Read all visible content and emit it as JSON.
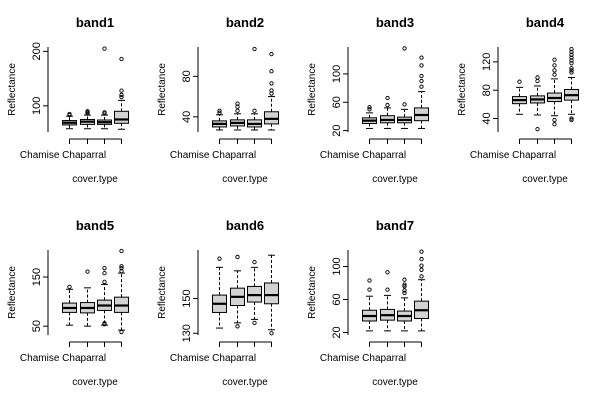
{
  "chart_data": [
    {
      "type": "box",
      "title": "band1",
      "ylabel": "Reflectance",
      "xlabel": "cover.type",
      "category_label_shown": "Chamise Chaparral",
      "ylim": [
        52,
        208
      ],
      "yticks": [
        100,
        200
      ],
      "boxes": [
        {
          "q1": 65,
          "median": 69,
          "q3": 73,
          "whisker_low": 58,
          "whisker_high": 81,
          "outliers": [
            83,
            85
          ]
        },
        {
          "q1": 66,
          "median": 71,
          "q3": 75,
          "whisker_low": 58,
          "whisker_high": 83,
          "outliers": [
            86,
            88,
            90
          ]
        },
        {
          "q1": 66,
          "median": 70,
          "q3": 74,
          "whisker_low": 58,
          "whisker_high": 83,
          "outliers": [
            86,
            88,
            205
          ]
        },
        {
          "q1": 68,
          "median": 75,
          "q3": 90,
          "whisker_low": 57,
          "whisker_high": 110,
          "outliers": [
            116,
            120,
            128,
            186
          ]
        }
      ]
    },
    {
      "type": "box",
      "title": "band2",
      "ylabel": "Reflectance",
      "xlabel": "cover.type",
      "category_label_shown": "Chamise Chaparral",
      "ylim": [
        25,
        109
      ],
      "yticks": [
        40,
        80
      ],
      "boxes": [
        {
          "q1": 30,
          "median": 33,
          "q3": 36,
          "whisker_low": 27,
          "whisker_high": 42,
          "outliers": [
            44,
            46
          ]
        },
        {
          "q1": 31,
          "median": 34,
          "q3": 37,
          "whisker_low": 27,
          "whisker_high": 43,
          "outliers": [
            46,
            50,
            53
          ]
        },
        {
          "q1": 30,
          "median": 33,
          "q3": 37,
          "whisker_low": 27,
          "whisker_high": 43,
          "outliers": [
            46,
            107
          ]
        },
        {
          "q1": 33,
          "median": 38,
          "q3": 45,
          "whisker_low": 27,
          "whisker_high": 60,
          "outliers": [
            63,
            66,
            73,
            85,
            102
          ]
        }
      ]
    },
    {
      "type": "box",
      "title": "band3",
      "ylabel": "Reflectance",
      "xlabel": "cover.type",
      "category_label_shown": "Chamise Chaparral",
      "ylim": [
        18,
        138
      ],
      "yticks": [
        20,
        60,
        100
      ],
      "boxes": [
        {
          "q1": 30,
          "median": 34,
          "q3": 38,
          "whisker_low": 23,
          "whisker_high": 45,
          "outliers": [
            50,
            53
          ]
        },
        {
          "q1": 31,
          "median": 35,
          "q3": 41,
          "whisker_low": 23,
          "whisker_high": 52,
          "outliers": [
            56,
            66
          ]
        },
        {
          "q1": 31,
          "median": 35,
          "q3": 39,
          "whisker_low": 23,
          "whisker_high": 50,
          "outliers": [
            57,
            136
          ]
        },
        {
          "q1": 34,
          "median": 42,
          "q3": 52,
          "whisker_low": 23,
          "whisker_high": 75,
          "outliers": [
            82,
            90,
            97,
            112,
            123
          ]
        }
      ]
    },
    {
      "type": "box",
      "title": "band4",
      "ylabel": "Reflectance",
      "xlabel": "cover.type",
      "category_label_shown": "Chamise Chaparral",
      "ylim": [
        21,
        141
      ],
      "yticks": [
        40,
        80,
        120
      ],
      "boxes": [
        {
          "q1": 61,
          "median": 66,
          "q3": 71,
          "whisker_low": 46,
          "whisker_high": 84,
          "outliers": [
            92
          ]
        },
        {
          "q1": 62,
          "median": 67,
          "q3": 72,
          "whisker_low": 45,
          "whisker_high": 86,
          "outliers": [
            25,
            93,
            98
          ]
        },
        {
          "q1": 64,
          "median": 69,
          "q3": 76,
          "whisker_low": 44,
          "whisker_high": 96,
          "outliers": [
            32,
            38,
            102,
            108,
            115,
            123
          ]
        },
        {
          "q1": 66,
          "median": 73,
          "q3": 81,
          "whisker_low": 46,
          "whisker_high": 98,
          "outliers": [
            38,
            40,
            105,
            108,
            111,
            118,
            122,
            126,
            130,
            134,
            138
          ]
        }
      ]
    },
    {
      "type": "box",
      "title": "band5",
      "ylabel": "Reflectance",
      "xlabel": "cover.type",
      "category_label_shown": "Chamise Chaparral",
      "ylim": [
        32,
        205
      ],
      "yticks": [
        50,
        150
      ],
      "boxes": [
        {
          "q1": 78,
          "median": 87,
          "q3": 97,
          "whisker_low": 52,
          "whisker_high": 125,
          "outliers": [
            130
          ]
        },
        {
          "q1": 77,
          "median": 87,
          "q3": 98,
          "whisker_low": 50,
          "whisker_high": 128,
          "outliers": [
            161
          ]
        },
        {
          "q1": 82,
          "median": 92,
          "q3": 103,
          "whisker_low": 52,
          "whisker_high": 135,
          "outliers": [
            54,
            56,
            140,
            158,
            168
          ]
        },
        {
          "q1": 78,
          "median": 92,
          "q3": 109,
          "whisker_low": 42,
          "whisker_high": 158,
          "outliers": [
            38,
            162,
            168,
            172,
            203
          ]
        }
      ]
    },
    {
      "type": "box",
      "title": "band6",
      "ylabel": "Reflectance",
      "xlabel": "cover.type",
      "category_label_shown": "Chamise Chaparral",
      "ylim": [
        129,
        178
      ],
      "yticks": [
        130,
        150
      ],
      "boxes": [
        {
          "q1": 142,
          "median": 147,
          "q3": 152,
          "whisker_low": 133,
          "whisker_high": 168,
          "outliers": [
            173
          ]
        },
        {
          "q1": 146,
          "median": 151,
          "q3": 156,
          "whisker_low": 136,
          "whisker_high": 166,
          "outliers": [
            134,
            174
          ]
        },
        {
          "q1": 148,
          "median": 152,
          "q3": 157,
          "whisker_low": 138,
          "whisker_high": 168,
          "outliers": [
            136,
            171
          ]
        },
        {
          "q1": 147,
          "median": 152,
          "q3": 159,
          "whisker_low": 132,
          "whisker_high": 175,
          "outliers": [
            130
          ]
        }
      ]
    },
    {
      "type": "box",
      "title": "band7",
      "ylabel": "Reflectance",
      "xlabel": "cover.type",
      "category_label_shown": "Chamise Chaparral",
      "ylim": [
        17,
        120
      ],
      "yticks": [
        20,
        60,
        100
      ],
      "boxes": [
        {
          "q1": 34,
          "median": 40,
          "q3": 47,
          "whisker_low": 22,
          "whisker_high": 64,
          "outliers": [
            72,
            83
          ]
        },
        {
          "q1": 35,
          "median": 41,
          "q3": 48,
          "whisker_low": 22,
          "whisker_high": 65,
          "outliers": [
            72,
            93
          ]
        },
        {
          "q1": 34,
          "median": 40,
          "q3": 46,
          "whisker_low": 22,
          "whisker_high": 62,
          "outliers": [
            68,
            71,
            76,
            78,
            84
          ]
        },
        {
          "q1": 37,
          "median": 47,
          "q3": 58,
          "whisker_low": 22,
          "whisker_high": 84,
          "outliers": [
            88,
            96,
            101,
            109,
            118
          ]
        }
      ]
    }
  ]
}
